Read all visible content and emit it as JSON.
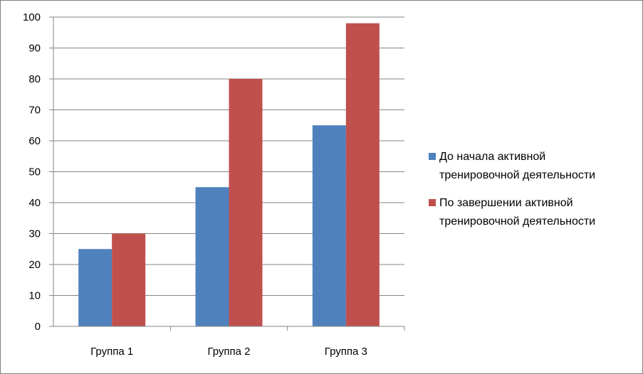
{
  "chart_data": {
    "type": "bar",
    "categories": [
      "Группа 1",
      "Группа 2",
      "Группа 3"
    ],
    "series": [
      {
        "name": "До начала активной тренировочной деятельности",
        "name_lines": [
          "До начала активной",
          "тренировочной деятельности"
        ],
        "values": [
          25,
          45,
          65
        ],
        "color": "#4f81bd"
      },
      {
        "name": "По завершении активной тренировочной деятельности",
        "name_lines": [
          "По завершении активной",
          "тренировочной деятельности"
        ],
        "values": [
          30,
          80,
          98
        ],
        "color": "#c0504d"
      }
    ],
    "ylim": [
      0,
      100
    ],
    "yticks": [
      0,
      10,
      20,
      30,
      40,
      50,
      60,
      70,
      80,
      90,
      100
    ],
    "grid": true,
    "legend": "right",
    "title": "",
    "xlabel": "",
    "ylabel": ""
  }
}
